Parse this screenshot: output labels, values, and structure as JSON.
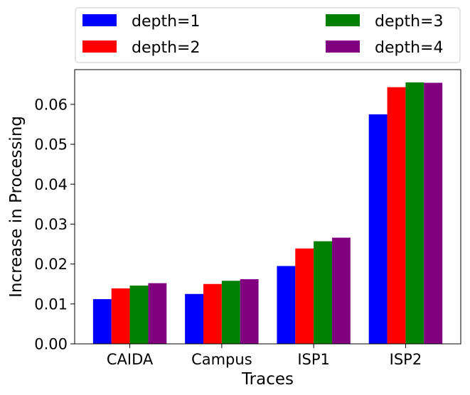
{
  "chart_data": {
    "type": "bar",
    "title": "",
    "xlabel": "Traces",
    "ylabel": "Increase in Processing",
    "categories": [
      "CAIDA",
      "Campus",
      "ISP1",
      "ISP2"
    ],
    "series": [
      {
        "name": "depth=1",
        "color": "#0000ff",
        "values": [
          0.0112,
          0.0125,
          0.0195,
          0.0575
        ]
      },
      {
        "name": "depth=2",
        "color": "#ff0000",
        "values": [
          0.0139,
          0.015,
          0.0239,
          0.0643
        ]
      },
      {
        "name": "depth=3",
        "color": "#008000",
        "values": [
          0.0146,
          0.0158,
          0.0257,
          0.0655
        ]
      },
      {
        "name": "depth=4",
        "color": "#800080",
        "values": [
          0.0152,
          0.0162,
          0.0266,
          0.0654
        ]
      }
    ],
    "ylim": [
      0,
      0.0687
    ],
    "yticks": [
      "0.00",
      "0.01",
      "0.02",
      "0.03",
      "0.04",
      "0.05",
      "0.06"
    ],
    "ytick_values": [
      0,
      0.01,
      0.02,
      0.03,
      0.04,
      0.05,
      0.06
    ],
    "grid": false,
    "legend_placement": "top, above plot, 2 columns"
  }
}
